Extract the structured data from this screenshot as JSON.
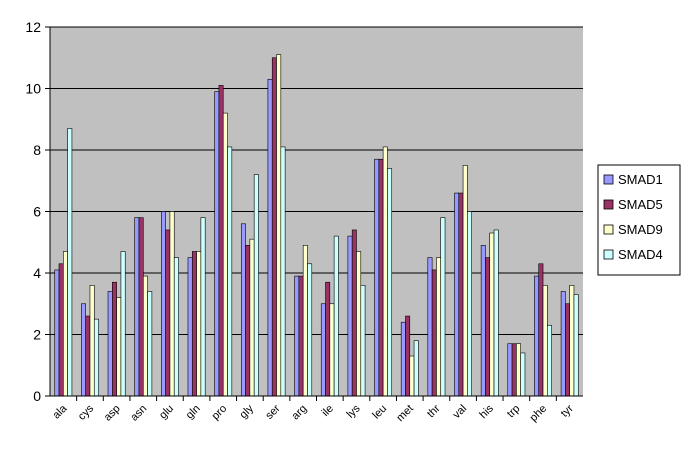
{
  "chart_data": {
    "type": "bar",
    "title": "",
    "xlabel": "",
    "ylabel": "",
    "ylim": [
      0,
      12
    ],
    "yticks": [
      "0",
      "2",
      "4",
      "6",
      "8",
      "10",
      "12"
    ],
    "grid": true,
    "legend_position": "right",
    "plot_background": "#c0c0c0",
    "categories": [
      "ala",
      "cys",
      "asp",
      "asn",
      "glu",
      "gln",
      "pro",
      "gly",
      "ser",
      "arg",
      "ile",
      "lys",
      "leu",
      "met",
      "thr",
      "val",
      "his",
      "trp",
      "phe",
      "tyr"
    ],
    "series": [
      {
        "name": "SMAD1",
        "color": "#9999ff",
        "values": [
          4.1,
          3.0,
          3.4,
          5.8,
          6.0,
          4.5,
          9.9,
          5.6,
          10.3,
          3.9,
          3.0,
          5.2,
          7.7,
          2.4,
          4.5,
          6.6,
          4.9,
          1.7,
          3.9,
          3.4
        ]
      },
      {
        "name": "SMAD5",
        "color": "#993366",
        "values": [
          4.3,
          2.6,
          3.7,
          5.8,
          5.4,
          4.7,
          10.1,
          4.9,
          11.0,
          3.9,
          3.7,
          5.4,
          7.7,
          2.6,
          4.1,
          6.6,
          4.5,
          1.7,
          4.3,
          3.0
        ]
      },
      {
        "name": "SMAD9",
        "color": "#ffffcc",
        "values": [
          4.7,
          3.6,
          3.2,
          3.9,
          6.0,
          4.7,
          9.2,
          5.1,
          11.1,
          4.9,
          3.0,
          4.7,
          8.1,
          1.3,
          4.5,
          7.5,
          5.3,
          1.7,
          3.6,
          3.6
        ]
      },
      {
        "name": "SMAD4",
        "color": "#ccffff",
        "values": [
          8.7,
          2.5,
          4.7,
          3.4,
          4.5,
          5.8,
          8.1,
          7.2,
          8.1,
          4.3,
          5.2,
          3.6,
          7.4,
          1.8,
          5.8,
          6.0,
          5.4,
          1.4,
          2.3,
          3.3
        ]
      }
    ]
  }
}
